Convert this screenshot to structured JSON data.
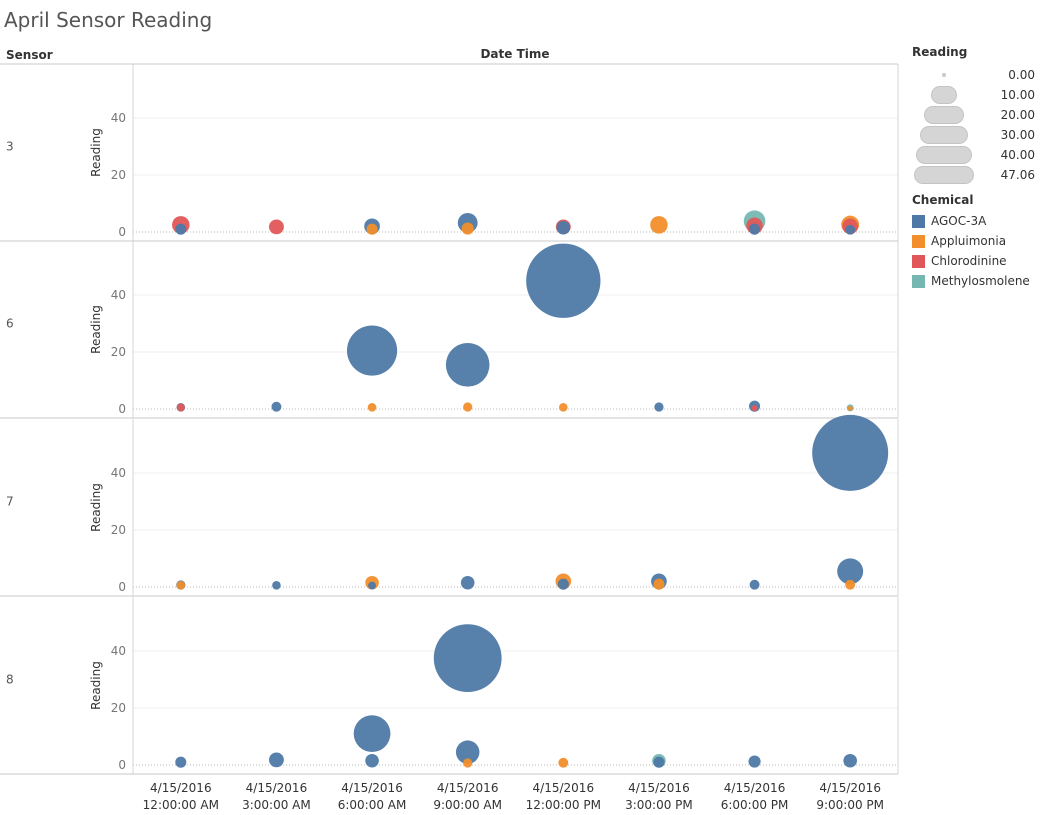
{
  "title": "April Sensor Reading",
  "header": {
    "row_label": "Sensor",
    "column_label": "Date Time"
  },
  "legend": {
    "size_title": "Reading",
    "size_values": [
      "0.00",
      "10.00",
      "20.00",
      "30.00",
      "40.00",
      "47.06"
    ],
    "color_title": "Chemical",
    "chemicals": [
      {
        "name": "AGOC-3A",
        "color": "#4e79a7"
      },
      {
        "name": "Appluimonia",
        "color": "#f28e2b"
      },
      {
        "name": "Chlorodinine",
        "color": "#e15759"
      },
      {
        "name": "Methylosmolene",
        "color": "#76b7b2"
      }
    ]
  },
  "chart_data": {
    "type": "scatter",
    "encoding": {
      "x": "Date Time",
      "y": "Reading",
      "size": "Reading",
      "color": "Chemical",
      "rows": "Sensor"
    },
    "x_categories": [
      [
        "4/15/2016",
        "12:00:00 AM"
      ],
      [
        "4/15/2016",
        "3:00:00 AM"
      ],
      [
        "4/15/2016",
        "6:00:00 AM"
      ],
      [
        "4/15/2016",
        "9:00:00 AM"
      ],
      [
        "4/15/2016",
        "12:00:00 PM"
      ],
      [
        "4/15/2016",
        "3:00:00 PM"
      ],
      [
        "4/15/2016",
        "6:00:00 PM"
      ],
      [
        "4/15/2016",
        "9:00:00 PM"
      ]
    ],
    "ylabel": "Reading",
    "yticks": [
      0,
      20,
      40
    ],
    "ylim": [
      0,
      50
    ],
    "size_max": 47.06,
    "panels": [
      {
        "sensor": "3",
        "points": [
          {
            "x": 0,
            "chemical": "Chlorodinine",
            "y": 2.5
          },
          {
            "x": 0,
            "chemical": "AGOC-3A",
            "y": 1.0
          },
          {
            "x": 1,
            "chemical": "Chlorodinine",
            "y": 1.8
          },
          {
            "x": 2,
            "chemical": "Appluimonia",
            "y": 1.0
          },
          {
            "x": 2,
            "chemical": "AGOC-3A",
            "y": 2.0
          },
          {
            "x": 3,
            "chemical": "Appluimonia",
            "y": 1.2
          },
          {
            "x": 3,
            "chemical": "AGOC-3A",
            "y": 3.2
          },
          {
            "x": 4,
            "chemical": "Chlorodinine",
            "y": 1.8
          },
          {
            "x": 4,
            "chemical": "AGOC-3A",
            "y": 1.5
          },
          {
            "x": 5,
            "chemical": "Appluimonia",
            "y": 2.5
          },
          {
            "x": 6,
            "chemical": "Methylosmolene",
            "y": 3.8
          },
          {
            "x": 6,
            "chemical": "Chlorodinine",
            "y": 2.2
          },
          {
            "x": 6,
            "chemical": "AGOC-3A",
            "y": 1.0
          },
          {
            "x": 7,
            "chemical": "Appluimonia",
            "y": 2.6
          },
          {
            "x": 7,
            "chemical": "Chlorodinine",
            "y": 2.0
          },
          {
            "x": 7,
            "chemical": "AGOC-3A",
            "y": 0.8
          }
        ]
      },
      {
        "sensor": "6",
        "points": [
          {
            "x": 0,
            "chemical": "Chlorodinine",
            "y": 0.5
          },
          {
            "x": 0,
            "chemical": "AGOC-3A",
            "y": 0.6
          },
          {
            "x": 1,
            "chemical": "AGOC-3A",
            "y": 0.8
          },
          {
            "x": 2,
            "chemical": "AGOC-3A",
            "y": 20.5
          },
          {
            "x": 2,
            "chemical": "Appluimonia",
            "y": 0.6
          },
          {
            "x": 3,
            "chemical": "AGOC-3A",
            "y": 15.5
          },
          {
            "x": 3,
            "chemical": "Appluimonia",
            "y": 0.7
          },
          {
            "x": 4,
            "chemical": "AGOC-3A",
            "y": 45.0
          },
          {
            "x": 4,
            "chemical": "Appluimonia",
            "y": 0.6
          },
          {
            "x": 5,
            "chemical": "AGOC-3A",
            "y": 0.7
          },
          {
            "x": 6,
            "chemical": "AGOC-3A",
            "y": 1.0
          },
          {
            "x": 6,
            "chemical": "Chlorodinine",
            "y": 0.3
          },
          {
            "x": 7,
            "chemical": "Methylosmolene",
            "y": 0.4
          },
          {
            "x": 7,
            "chemical": "Appluimonia",
            "y": 0.2
          }
        ]
      },
      {
        "sensor": "7",
        "points": [
          {
            "x": 0,
            "chemical": "Appluimonia",
            "y": 0.6
          },
          {
            "x": 0,
            "chemical": "AGOC-3A",
            "y": 0.7
          },
          {
            "x": 1,
            "chemical": "AGOC-3A",
            "y": 0.6
          },
          {
            "x": 2,
            "chemical": "Appluimonia",
            "y": 1.5
          },
          {
            "x": 2,
            "chemical": "AGOC-3A",
            "y": 0.5
          },
          {
            "x": 3,
            "chemical": "AGOC-3A",
            "y": 1.5
          },
          {
            "x": 4,
            "chemical": "Appluimonia",
            "y": 2.0
          },
          {
            "x": 4,
            "chemical": "AGOC-3A",
            "y": 1.0
          },
          {
            "x": 5,
            "chemical": "AGOC-3A",
            "y": 2.0
          },
          {
            "x": 5,
            "chemical": "Appluimonia",
            "y": 1.0
          },
          {
            "x": 6,
            "chemical": "AGOC-3A",
            "y": 0.8
          },
          {
            "x": 7,
            "chemical": "AGOC-3A",
            "y": 47.06
          },
          {
            "x": 7,
            "chemical": "AGOC-3A",
            "y": 5.5
          },
          {
            "x": 7,
            "chemical": "Appluimonia",
            "y": 0.8
          }
        ]
      },
      {
        "sensor": "8",
        "points": [
          {
            "x": 0,
            "chemical": "AGOC-3A",
            "y": 1.0
          },
          {
            "x": 1,
            "chemical": "AGOC-3A",
            "y": 1.8
          },
          {
            "x": 2,
            "chemical": "AGOC-3A",
            "y": 11.0
          },
          {
            "x": 2,
            "chemical": "AGOC-3A",
            "y": 1.5
          },
          {
            "x": 3,
            "chemical": "AGOC-3A",
            "y": 37.5
          },
          {
            "x": 3,
            "chemical": "AGOC-3A",
            "y": 4.5
          },
          {
            "x": 3,
            "chemical": "Appluimonia",
            "y": 0.7
          },
          {
            "x": 4,
            "chemical": "Appluimonia",
            "y": 0.8
          },
          {
            "x": 5,
            "chemical": "Methylosmolene",
            "y": 1.5
          },
          {
            "x": 5,
            "chemical": "AGOC-3A",
            "y": 1.0
          },
          {
            "x": 6,
            "chemical": "AGOC-3A",
            "y": 1.2
          },
          {
            "x": 7,
            "chemical": "AGOC-3A",
            "y": 1.5
          }
        ]
      }
    ]
  }
}
